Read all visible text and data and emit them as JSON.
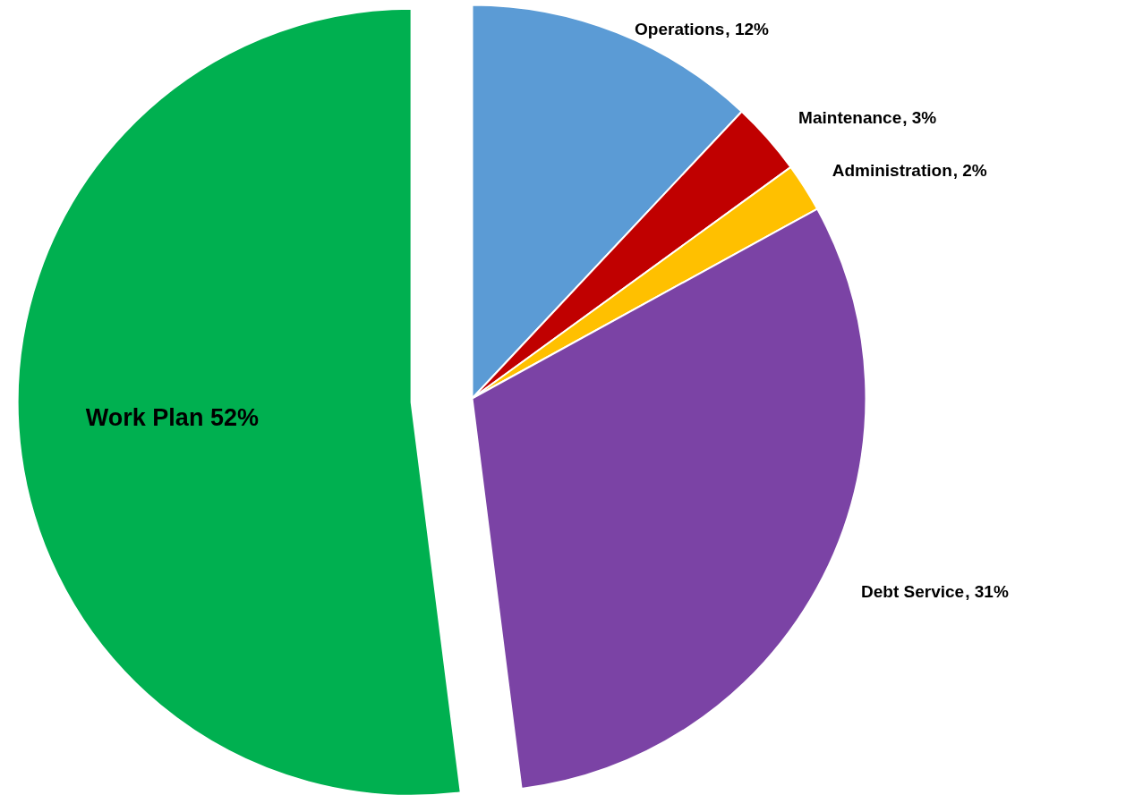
{
  "chart_data": {
    "type": "pie",
    "categories": [
      "Operations",
      "Maintenance",
      "Administration",
      "Debt Service",
      "Work Plan"
    ],
    "values": [
      12,
      3,
      2,
      31,
      52
    ],
    "colors": [
      "#5b9bd5",
      "#c00000",
      "#ffc000",
      "#7b43a5",
      "#00b050"
    ],
    "value_labels": [
      ", 12%",
      ", 3%",
      ", 2%",
      ", 31%",
      "52%"
    ],
    "legend": false
  }
}
